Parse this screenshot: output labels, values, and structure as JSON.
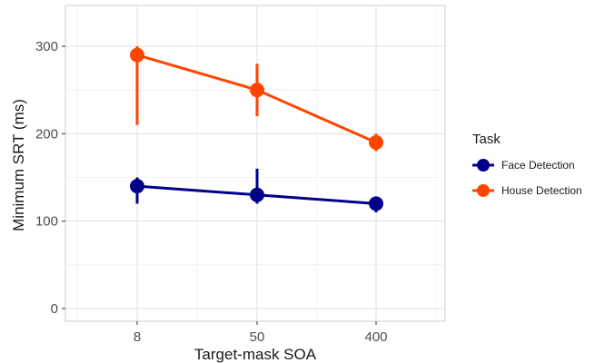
{
  "chart_data": {
    "type": "line",
    "x_type": "categorical",
    "categories": [
      "8",
      "50",
      "400"
    ],
    "xlabel": "Target-mask SOA",
    "ylabel": "Minimum SRT (ms)",
    "ylim": [
      0,
      330
    ],
    "yticks": [
      0,
      100,
      200,
      300
    ],
    "grid": true,
    "legend": {
      "title": "Task",
      "position": "right"
    },
    "series": [
      {
        "name": "Face Detection",
        "color": "#00008B",
        "values": [
          140,
          130,
          120
        ],
        "error_low": [
          120,
          120,
          110
        ],
        "error_high": [
          150,
          160,
          125
        ]
      },
      {
        "name": "House Detection",
        "color": "#FF4500",
        "values": [
          290,
          250,
          190
        ],
        "error_low": [
          210,
          220,
          180
        ],
        "error_high": [
          300,
          280,
          200
        ]
      }
    ]
  }
}
